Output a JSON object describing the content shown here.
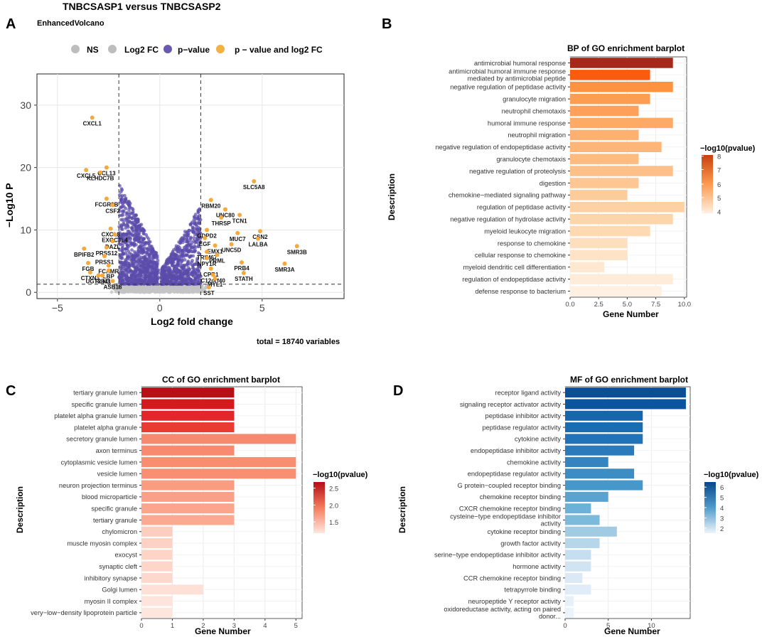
{
  "panel_letters": {
    "a": "A",
    "b": "B",
    "c": "C",
    "d": "D"
  },
  "volcano": {
    "title": "TNBCSASP1 versus TNBCSASP2",
    "subtitle": "EnhancedVolcano",
    "legend": [
      "NS",
      "Log2 FC",
      "p−value",
      "p − value and log2 FC"
    ],
    "legend_colors": [
      "#bdbdbd",
      "#bdbdbd",
      "#6a5aaf",
      "#f5b042"
    ],
    "xlabel": "Log2 fold change",
    "ylabel": "−Log10 P",
    "caption": "total = 18740 variables",
    "x_ticks": [
      "−5",
      "0",
      "5"
    ],
    "y_ticks": [
      "0",
      "10",
      "20",
      "30"
    ]
  },
  "chart_data": [
    {
      "id": "volcano",
      "type": "scatter",
      "title": "TNBCSASP1 versus TNBCSASP2",
      "xlabel": "Log2 fold change",
      "ylabel": "-Log10 P",
      "xlim": [
        -6,
        9
      ],
      "ylim": [
        -1,
        35
      ],
      "fc_cutoff": 2,
      "p_cutoff_log10": 1.3,
      "labeled_points": [
        {
          "label": "CXCL1",
          "x": -3.3,
          "y": 28
        },
        {
          "label": "CXCL5",
          "x": -3.6,
          "y": 19.6
        },
        {
          "label": "CCL13",
          "x": -2.6,
          "y": 20
        },
        {
          "label": "KLHDC7B",
          "x": -2.9,
          "y": 19.2
        },
        {
          "label": "FCGR3B",
          "x": -2.6,
          "y": 15
        },
        {
          "label": "CSF2",
          "x": -2.3,
          "y": 14
        },
        {
          "label": "CXCL8",
          "x": -2.4,
          "y": 10.2
        },
        {
          "label": "EXOC3L4",
          "x": -2.2,
          "y": 9.3
        },
        {
          "label": "DAZL",
          "x": -2.3,
          "y": 8.2
        },
        {
          "label": "PRSS12",
          "x": -2.6,
          "y": 7.2
        },
        {
          "label": "BPIFB2",
          "x": -3.7,
          "y": 7
        },
        {
          "label": "PRSS1",
          "x": -2.7,
          "y": 5.8
        },
        {
          "label": "FGB",
          "x": -3.5,
          "y": 4.7
        },
        {
          "label": "FCAMR",
          "x": -2.5,
          "y": 4.3
        },
        {
          "label": "LBP",
          "x": -2.5,
          "y": 3.5
        },
        {
          "label": "CTXN3",
          "x": -3.4,
          "y": 3.2
        },
        {
          "label": "UGT2B11",
          "x": -3,
          "y": 2.7
        },
        {
          "label": "RLN3",
          "x": -2.8,
          "y": 2.7
        },
        {
          "label": "ASB18",
          "x": -2.3,
          "y": 1.8
        },
        {
          "label": "SLC5A8",
          "x": 4.6,
          "y": 17.8
        },
        {
          "label": "RBM20",
          "x": 2.5,
          "y": 14.8
        },
        {
          "label": "UNC80",
          "x": 3.2,
          "y": 13.3
        },
        {
          "label": "TCN1",
          "x": 3.9,
          "y": 12.4
        },
        {
          "label": "THRSP",
          "x": 3,
          "y": 12
        },
        {
          "label": "GDPD2",
          "x": 2.3,
          "y": 10
        },
        {
          "label": "MUC7",
          "x": 3.8,
          "y": 9.5
        },
        {
          "label": "CSN2",
          "x": 4.9,
          "y": 9.8
        },
        {
          "label": "LALBA",
          "x": 4.8,
          "y": 8.6
        },
        {
          "label": "SMR3B",
          "x": 6.7,
          "y": 7.4
        },
        {
          "label": "EGF",
          "x": 2.2,
          "y": 8.7
        },
        {
          "label": "EMX1",
          "x": 2.7,
          "y": 7.5
        },
        {
          "label": "UNC5D",
          "x": 3.5,
          "y": 7.7
        },
        {
          "label": "TRIM67",
          "x": 2.3,
          "y": 6.5
        },
        {
          "label": "PRML",
          "x": 2.8,
          "y": 6
        },
        {
          "label": "NPY1R",
          "x": 2.3,
          "y": 5.5
        },
        {
          "label": "SMR3A",
          "x": 6.1,
          "y": 4.6
        },
        {
          "label": "PRB4",
          "x": 4,
          "y": 4.8
        },
        {
          "label": "CPB1",
          "x": 2.5,
          "y": 3.8
        },
        {
          "label": "C12orf40",
          "x": 2.6,
          "y": 2.8
        },
        {
          "label": "STATH",
          "x": 4.1,
          "y": 3.1
        },
        {
          "label": "MYL1",
          "x": 2.7,
          "y": 2.2
        },
        {
          "label": "SST",
          "x": 2.4,
          "y": 0.8
        }
      ]
    },
    {
      "id": "bp",
      "type": "bar",
      "orientation": "horizontal",
      "title": "BP of GO enrichment barplot",
      "xlabel": "Gene Number",
      "ylabel": "Description",
      "xlim": [
        0,
        10.2
      ],
      "x_ticks": [
        "0.0",
        "2.5",
        "5.0",
        "7.5",
        "10.0"
      ],
      "colorbar_title": "−log10(pvalue)",
      "colorbar_ticks": [
        "8",
        "7",
        "6",
        "5",
        "4"
      ],
      "categories": [
        "antimicrobial humoral response",
        "antimicrobial humoral immune response mediated by antimicrobial peptide",
        "negative regulation of peptidase activity",
        "granulocyte migration",
        "neutrophil chemotaxis",
        "humoral immune response",
        "neutrophil migration",
        "negative regulation of endopeptidase activity",
        "granulocyte chemotaxis",
        "negative regulation of proteolysis",
        "digestion",
        "chemokine−mediated signaling pathway",
        "regulation of peptidase activity",
        "negative regulation of hydrolase activity",
        "myeloid leukocyte migration",
        "response to chemokine",
        "cellular response to chemokine",
        "myeloid dendritic cell differentiation",
        "regulation of endopeptidase activity",
        "defense response to bacterium"
      ],
      "values": [
        9,
        7,
        9,
        7,
        6,
        9,
        6,
        8,
        6,
        9,
        6,
        5,
        10,
        9,
        7,
        5,
        5,
        3,
        9,
        8
      ],
      "colors": [
        "#a6281a",
        "#fa5c0f",
        "#fd9340",
        "#fd9d51",
        "#fda05c",
        "#fdaa66",
        "#fdb070",
        "#fdb578",
        "#fdbb80",
        "#fdc089",
        "#fdc692",
        "#fdcc9b",
        "#fdd1a4",
        "#fdd5ab",
        "#fed9b2",
        "#fedfbd",
        "#fee3c6",
        "#fee8cf",
        "#feecd9",
        "#fff0e1"
      ]
    },
    {
      "id": "cc",
      "type": "bar",
      "orientation": "horizontal",
      "title": "CC of GO enrichment barplot",
      "xlabel": "Gene Number",
      "ylabel": "Description",
      "xlim": [
        0,
        5.2
      ],
      "x_ticks": [
        "0",
        "1",
        "2",
        "3",
        "4",
        "5"
      ],
      "colorbar_title": "−log10(pvalue)",
      "colorbar_ticks": [
        "2.5",
        "2.0",
        "1.5"
      ],
      "categories": [
        "tertiary granule lumen",
        "specific granule lumen",
        "platelet alpha granule lumen",
        "platelet alpha granule",
        "secretory granule lumen",
        "axon terminus",
        "cytoplasmic vesicle lumen",
        "vesicle lumen",
        "neuron projection terminus",
        "blood microparticle",
        "specific granule",
        "tertiary granule",
        "chylomicron",
        "muscle myosin complex",
        "exocyst",
        "synaptic cleft",
        "inhibitory synapse",
        "Golgi lumen",
        "myosin II complex",
        "very−low−density lipoprotein particle"
      ],
      "values": [
        3,
        3,
        3,
        3,
        5,
        3,
        5,
        5,
        3,
        3,
        3,
        3,
        1,
        1,
        1,
        1,
        1,
        2,
        1,
        1
      ],
      "colors": [
        "#b80f17",
        "#d41a1d",
        "#e3262a",
        "#ea3b30",
        "#f58a6e",
        "#f88b6f",
        "#f88d70",
        "#f98f72",
        "#fa9c80",
        "#fba088",
        "#fba58d",
        "#fca992",
        "#fdcdbf",
        "#fdd1c3",
        "#fdd4c6",
        "#fdd6c9",
        "#fed8cc",
        "#fee0d6",
        "#fee4db",
        "#fee6de"
      ]
    },
    {
      "id": "mf",
      "type": "bar",
      "orientation": "horizontal",
      "title": "MF of GO enrichment barplot",
      "xlabel": "Gene Number",
      "ylabel": "Description",
      "xlim": [
        0,
        14.5
      ],
      "x_ticks": [
        "0",
        "5",
        "10"
      ],
      "colorbar_title": "−log10(pvalue)",
      "colorbar_ticks": [
        "6",
        "5",
        "4",
        "3",
        "2"
      ],
      "categories": [
        "receptor ligand activity",
        "signaling receptor activator activity",
        "peptidase inhibitor activity",
        "peptidase regulator activity",
        "cytokine activity",
        "endopeptidase inhibitor activity",
        "chemokine activity",
        "endopeptidase regulator activity",
        "G protein−coupled receptor binding",
        "chemokine receptor binding",
        "CXCR chemokine receptor binding",
        "cysteine−type endopeptidase inhibitor activity",
        "cytokine receptor binding",
        "growth factor activity",
        "serine−type endopeptidase inhibitor activity",
        "hormone activity",
        "CCR chemokine receptor binding",
        "tetrapyrrole binding",
        "neuropeptide Y receptor activity",
        "oxidoreductase activity, acting on paired donor..."
      ],
      "values": [
        14,
        14,
        9,
        9,
        9,
        8,
        5,
        8,
        9,
        5,
        3,
        4,
        6,
        4,
        3,
        3,
        2,
        3,
        1,
        1
      ],
      "colors": [
        "#0a4f96",
        "#0b559e",
        "#1566ad",
        "#1a6db1",
        "#2172b6",
        "#2b7bbb",
        "#3384bf",
        "#3b8dc4",
        "#4598c9",
        "#5aa3d0",
        "#6cb1d8",
        "#7cbadb",
        "#a1cbe2",
        "#b6d6ea",
        "#c5def0",
        "#d1e4f3",
        "#dbe9f6",
        "#e0ecf7",
        "#e6f0f9",
        "#ebf3fb"
      ]
    }
  ]
}
